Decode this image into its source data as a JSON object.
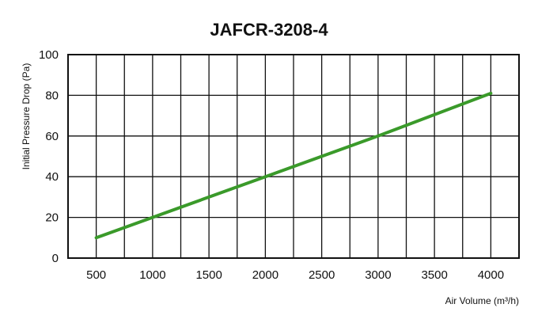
{
  "chart_data": {
    "type": "line",
    "title": "JAFCR-3208-4",
    "xlabel": "Air Volume (m³/h)",
    "ylabel": "Initial Pressure Drop (Pa)",
    "xlim": [
      250,
      4250
    ],
    "ylim": [
      0,
      100
    ],
    "x_ticks": [
      500,
      1000,
      1500,
      2000,
      2500,
      3000,
      3500,
      4000
    ],
    "y_ticks": [
      0,
      20,
      40,
      60,
      80,
      100
    ],
    "x_grid": [
      250,
      500,
      750,
      1000,
      1250,
      1500,
      1750,
      2000,
      2250,
      2500,
      2750,
      3000,
      3250,
      3500,
      3750,
      4000,
      4250
    ],
    "grid": true,
    "legend": "none",
    "series": [
      {
        "color": "#3a9a2a",
        "x": [
          500,
          1000,
          2000,
          3000,
          4000
        ],
        "y": [
          10,
          20,
          40,
          60,
          81
        ]
      }
    ]
  }
}
